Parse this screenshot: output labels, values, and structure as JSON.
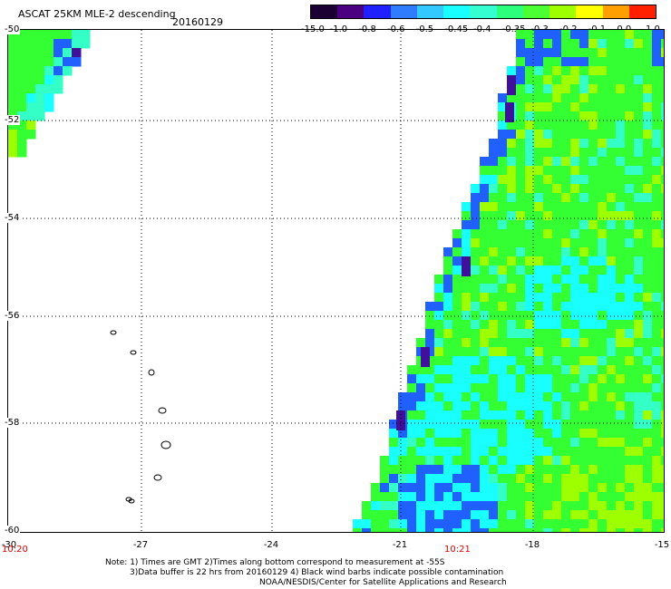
{
  "header": {
    "title": "ASCAT 25KM MLE-2 descending",
    "date": "20160129"
  },
  "colorbar": {
    "labels": [
      "-15.0",
      "-1.0",
      "-0.8",
      "-0.6",
      "-0.5",
      "-0.45",
      "-0.4",
      "-0.35",
      "-0.3",
      "-0.2",
      "-0.1",
      "0.0",
      "1.0"
    ],
    "colors": [
      "#1a0033",
      "#4b0082",
      "#2020ff",
      "#2f7cff",
      "#33c9ff",
      "#19ffff",
      "#35ffd0",
      "#2cff7c",
      "#4cff33",
      "#9eff00",
      "#ffff00",
      "#ffa000",
      "#ff2000"
    ]
  },
  "map": {
    "lat_labels": [
      "-50",
      "-52",
      "-54",
      "-56",
      "-58",
      "-60"
    ],
    "lon_labels": [
      "-30",
      "-27",
      "-24",
      "-21",
      "-18",
      "-15"
    ],
    "time_labels": [
      "10:20",
      "10:21"
    ],
    "colors": {
      "cyan": "#19ffff",
      "green": "#33ff33",
      "lime": "#9eff00",
      "blue": "#2060ff",
      "violet": "#40109a",
      "teal": "#33ffc6"
    }
  },
  "notes": {
    "line1": "Note: 1) Times are GMT 2)Times along bottom correspond to measurement at -55S",
    "line2": "3)Data buffer is 22 hrs from 20160129 4) Black wind barbs indicate possible contamination",
    "line3": "NOAA/NESDIS/Center for Satellite Applications and Research"
  }
}
